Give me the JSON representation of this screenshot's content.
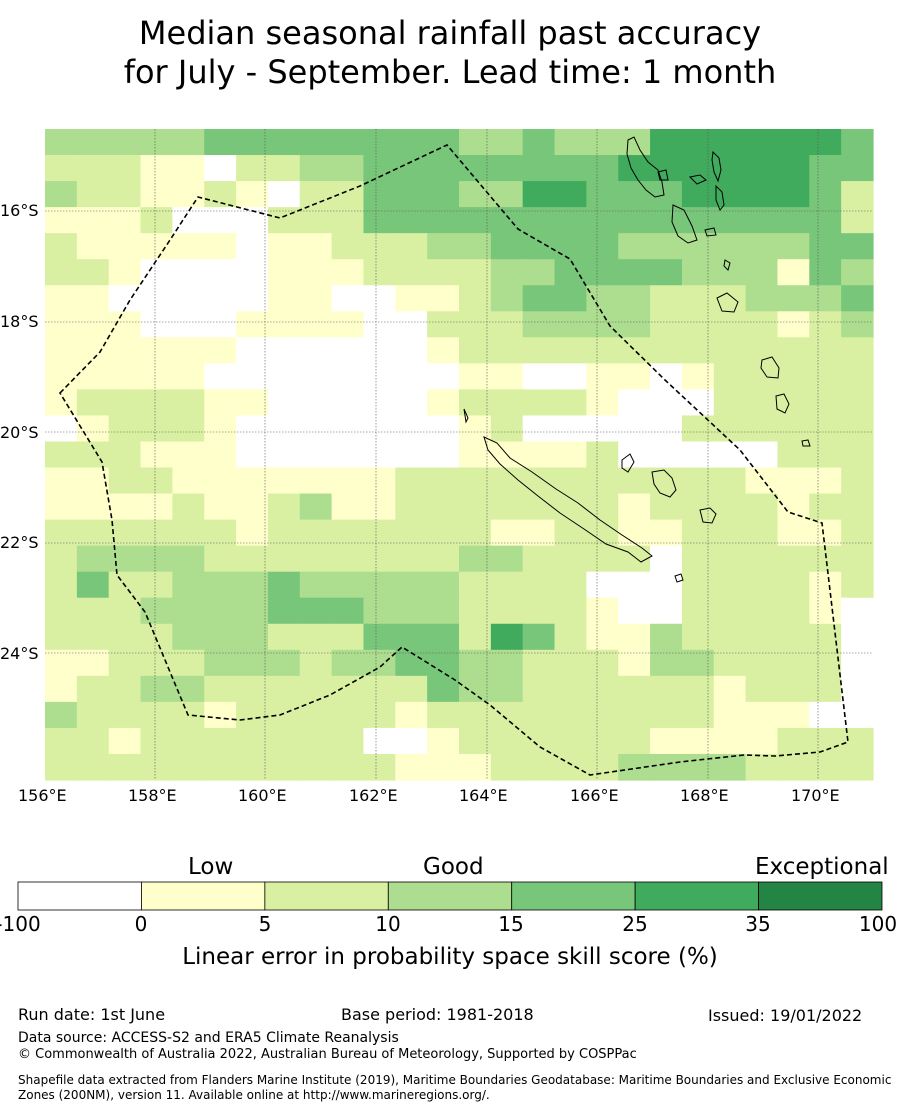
{
  "title_line1": "Median seasonal rainfall past accuracy",
  "title_line2": "for July - September. Lead time: 1 month",
  "map": {
    "lat_labels": [
      "16°S",
      "18°S",
      "20°S",
      "22°S",
      "24°S"
    ],
    "lon_labels": [
      "156°E",
      "158°E",
      "160°E",
      "162°E",
      "164°E",
      "166°E",
      "168°E",
      "170°E"
    ],
    "palette": {
      "0": "#ffffff",
      "1": "#ffffcc",
      "2": "#d9f0a3",
      "3": "#addd8e",
      "4": "#78c679",
      "5": "#41ab5d",
      "6": "#238443"
    },
    "skill_category_grid": [
      "33333444444443343335555554",
      "22211022334444444455555544",
      "32211210224443355444555542",
      "11120002224444444444444442",
      "21111101122233444433333344",
      "22100001112222334444333143",
      "11000001100112344332223334",
      "11100011110022233332222123",
      "11111100000012222222222222",
      "11111000000001100110122222",
      "12222110000012222100022222",
      "01222100000001200000222222",
      "22211100000001111200000222",
      "11221111111222222222221112",
      "11112112311222222212222122",
      "22222212222222112211222112",
      "23333222222223322220222222",
      "24223334333332222000222212",
      "22233334443332222100222210",
      "22223332224442542113222220",
      "11222333233443322213322220",
      "12233222222243322222212220",
      "32222122222122222222211100",
      "22122222220012222221111222",
      "22222222222111222233332222"
    ]
  },
  "colorbar": {
    "category_labels": [
      "Low",
      "Good",
      "Exceptional"
    ],
    "tick_labels": [
      "-100",
      "0",
      "5",
      "10",
      "15",
      "25",
      "35",
      "100"
    ],
    "colors": [
      "#ffffff",
      "#ffffcc",
      "#d9f0a3",
      "#addd8e",
      "#78c679",
      "#41ab5d",
      "#238443"
    ],
    "axis_label": "Linear error in probability space skill score (%)"
  },
  "footer": {
    "run_date": "Run date: 1st June",
    "base_period": "Base period: 1981-2018",
    "issued": "Issued: 19/01/2022",
    "data_source": "Data source: ACCESS-S2 and ERA5 Climate Reanalysis",
    "copyright": "© Commonwealth of Australia 2022, Australian Bureau of Meteorology, Supported by COSPPac",
    "shapefile": "Shapefile data extracted from Flanders Marine Institute (2019), Maritime Boundaries Geodatabase: Maritime Boundaries and Exclusive Economic Zones (200NM), version 11. Available online at http://www.marineregions.org/."
  }
}
